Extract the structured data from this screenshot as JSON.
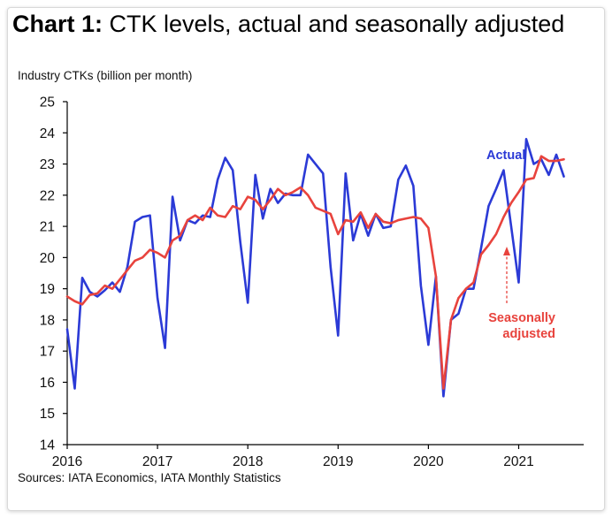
{
  "title": {
    "bold": "Chart 1:",
    "rest": " CTK levels, actual and seasonally adjusted"
  },
  "source": "Sources: IATA Economics, IATA Monthly Statistics",
  "chart_data": {
    "type": "line",
    "ylabel": "Industry CTKs (billion per month)",
    "xlabel": "",
    "ylim": [
      14,
      25
    ],
    "yticks": [
      14,
      15,
      16,
      17,
      18,
      19,
      20,
      21,
      22,
      23,
      24,
      25
    ],
    "xlim": [
      2016.0,
      2021.72
    ],
    "xticks": [
      "2016",
      "2017",
      "2018",
      "2019",
      "2020",
      "2021"
    ],
    "grid": false,
    "colors": {
      "actual": "#2b3ad6",
      "seasonal": "#e8433d",
      "axis": "#000000"
    },
    "annotations": [
      {
        "text": "Actual",
        "series": "Actual"
      },
      {
        "text": [
          "Seasonally",
          "adjusted"
        ],
        "series": "Seasonally adjusted",
        "arrow": "dashed-up"
      }
    ],
    "series": [
      {
        "name": "Actual",
        "color": "#2b3ad6",
        "start": "2016-01",
        "values": [
          17.7,
          15.8,
          19.35,
          18.9,
          18.75,
          18.95,
          19.2,
          18.9,
          19.7,
          21.15,
          21.3,
          21.35,
          18.7,
          17.1,
          21.95,
          20.55,
          21.2,
          21.1,
          21.35,
          21.3,
          22.5,
          23.2,
          22.8,
          20.5,
          18.55,
          22.65,
          21.25,
          22.2,
          21.75,
          22.05,
          22.0,
          22.0,
          23.3,
          23.0,
          22.7,
          19.7,
          17.5,
          22.7,
          20.55,
          21.4,
          20.7,
          21.4,
          20.95,
          21.0,
          22.5,
          22.95,
          22.3,
          19.1,
          17.2,
          19.4,
          15.55,
          18.0,
          18.2,
          19.0,
          19.0,
          20.3,
          21.65,
          22.2,
          22.8,
          21.0,
          19.2,
          23.8,
          23.0,
          23.15,
          22.65,
          23.3,
          22.6
        ]
      },
      {
        "name": "Seasonally adjusted",
        "color": "#e8433d",
        "start": "2016-01",
        "values": [
          18.75,
          18.6,
          18.5,
          18.8,
          18.85,
          19.1,
          19.0,
          19.3,
          19.6,
          19.9,
          20.0,
          20.25,
          20.15,
          20.0,
          20.55,
          20.7,
          21.2,
          21.35,
          21.2,
          21.6,
          21.35,
          21.3,
          21.65,
          21.55,
          21.95,
          21.85,
          21.55,
          21.85,
          22.2,
          22.0,
          22.1,
          22.25,
          22.0,
          21.6,
          21.5,
          21.4,
          20.75,
          21.2,
          21.15,
          21.45,
          20.95,
          21.4,
          21.15,
          21.1,
          21.2,
          21.25,
          21.3,
          21.25,
          20.95,
          19.4,
          15.8,
          18.0,
          18.7,
          19.0,
          19.2,
          20.1,
          20.4,
          20.75,
          21.3,
          21.75,
          22.1,
          22.5,
          22.55,
          23.25,
          23.1,
          23.1,
          23.15
        ]
      }
    ]
  }
}
